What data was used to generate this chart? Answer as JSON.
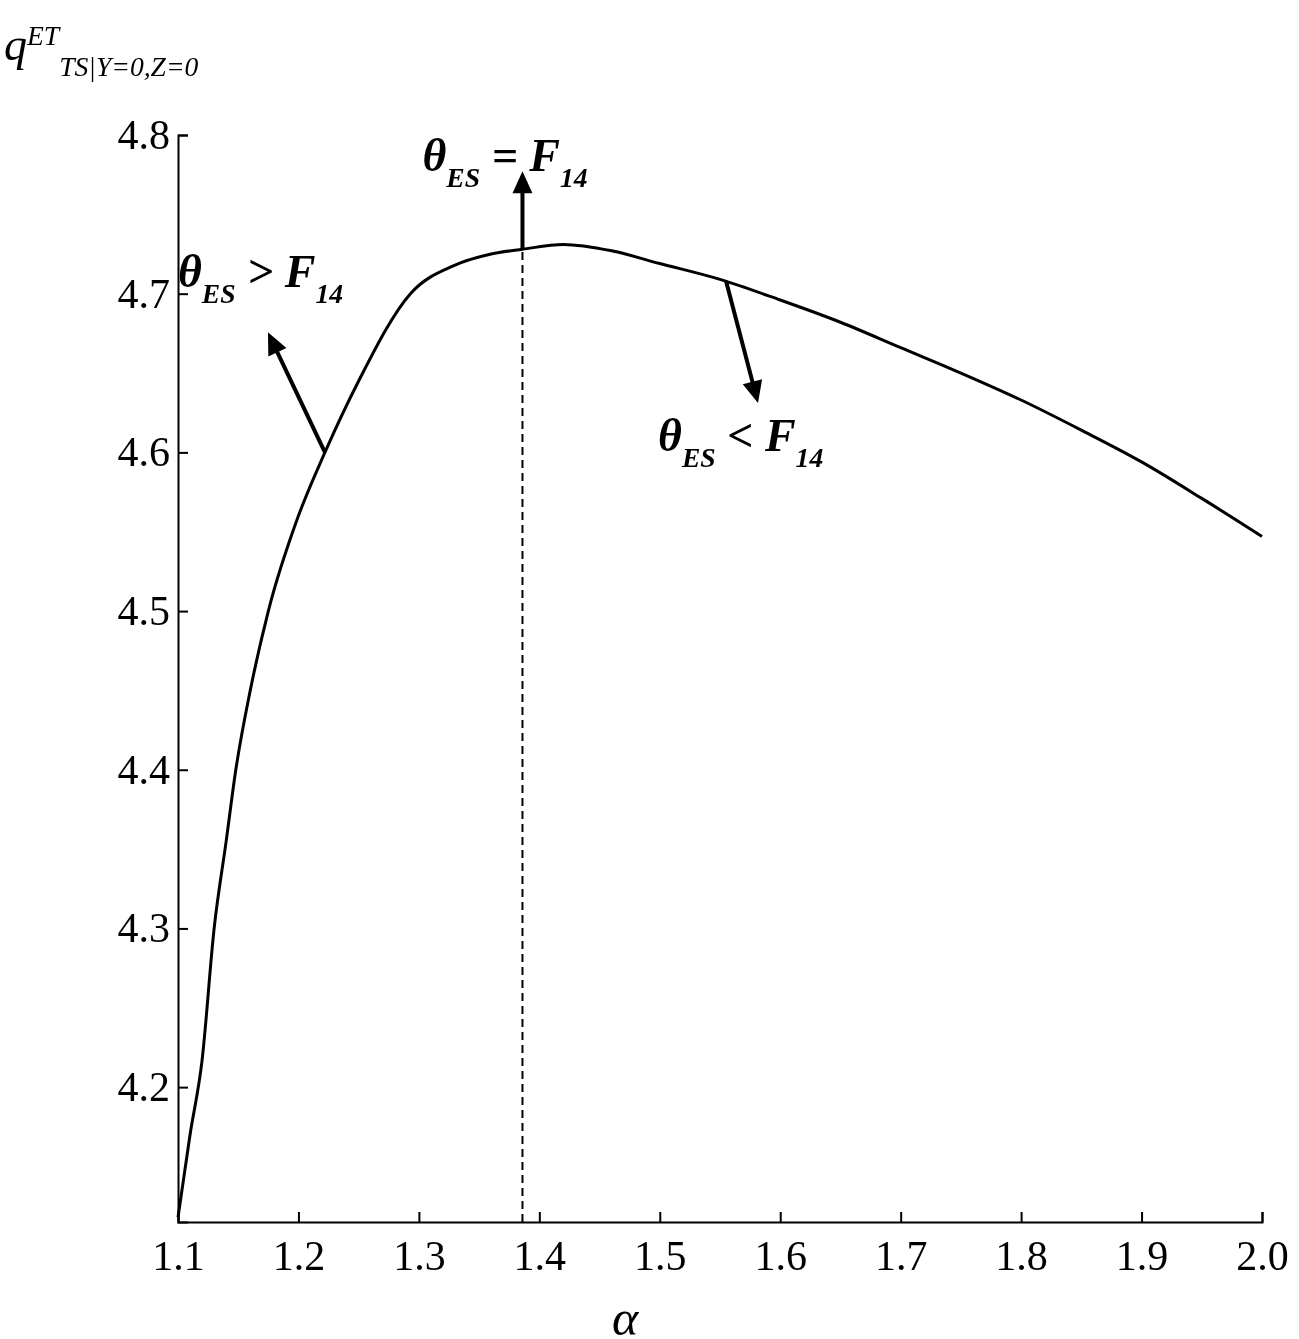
{
  "chart_data": {
    "type": "line",
    "xlabel": "α",
    "ylabel": "q$^{ET}$$_{TS|Y=0,Z=0}$",
    "x": [
      1.1,
      1.11,
      1.12,
      1.13,
      1.14,
      1.148,
      1.16,
      1.175,
      1.2,
      1.222,
      1.25,
      1.293,
      1.33,
      1.36,
      1.386,
      1.42,
      1.46,
      1.5,
      1.55,
      1.6,
      1.65,
      1.7,
      1.75,
      1.8,
      1.85,
      1.9,
      1.95,
      2.0
    ],
    "series": [
      {
        "color": "#000000",
        "values": [
          4.118,
          4.17,
          4.217,
          4.3,
          4.355,
          4.4,
          4.45,
          4.5,
          4.56,
          4.6,
          4.645,
          4.7,
          4.718,
          4.725,
          4.728,
          4.731,
          4.727,
          4.719,
          4.709,
          4.696,
          4.682,
          4.666,
          4.65,
          4.633,
          4.614,
          4.594,
          4.571,
          4.547
        ]
      }
    ],
    "xlim": [
      1.1,
      2.0
    ],
    "ylim": [
      4.115,
      4.8
    ],
    "xticks": [
      1.1,
      1.2,
      1.3,
      1.4,
      1.5,
      1.6,
      1.7,
      1.8,
      1.9,
      {
        "value": 2.0,
        "label": "2.0"
      }
    ],
    "yticks": [
      4.2,
      4.3,
      4.4,
      4.5,
      4.6,
      4.7,
      4.8
    ],
    "ref_lines": [
      {
        "axis": "x",
        "value": 1.386,
        "line_style": "dashed"
      }
    ],
    "annotations": [
      {
        "text": "θ$_{ES}$ = F$_{14}$",
        "x": 1.386,
        "y": 4.728
      },
      {
        "text": "θ$_{ES}$ > F$_{14}$",
        "x": 1.222,
        "y": 4.6
      },
      {
        "text": "θ$_{ES}$ < F$_{14}$",
        "x": 1.555,
        "y": 4.708
      }
    ],
    "grid": false,
    "marker": "none",
    "line_style": "solid"
  }
}
